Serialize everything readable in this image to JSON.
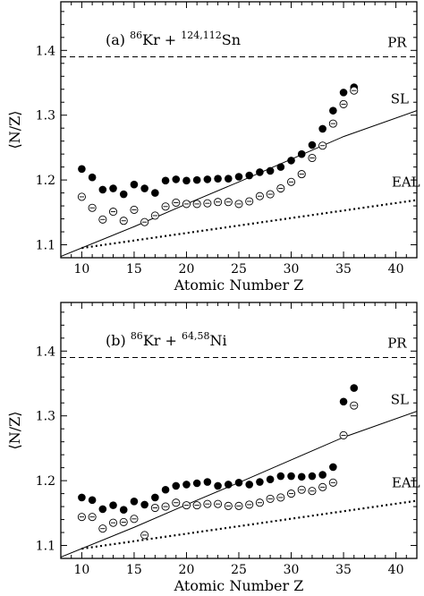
{
  "chart_data": [
    {
      "type": "scatter",
      "panel": "(a)",
      "title": {
        "proj_mass": "86",
        "proj": "Kr + ",
        "targ_mass": "124,112",
        "targ": "Sn"
      },
      "xlabel": "Atomic Number Z",
      "ylabel": "⟨N/Z⟩",
      "xlim": [
        8,
        42
      ],
      "ylim": [
        1.08,
        1.475
      ],
      "xticks": [
        "10",
        "15",
        "20",
        "25",
        "30",
        "35",
        "40"
      ],
      "yticks": [
        "1.1",
        "1.2",
        "1.3",
        "1.4"
      ],
      "grid": false,
      "reference_lines": [
        {
          "label": "PR",
          "style": "dashed",
          "y": 1.39
        },
        {
          "label": "SL",
          "style": "solid",
          "points": [
            [
              8,
              1.082
            ],
            [
              15,
              1.128
            ],
            [
              20,
              1.163
            ],
            [
              25,
              1.197
            ],
            [
              30,
              1.232
            ],
            [
              35,
              1.267
            ],
            [
              42,
              1.307
            ]
          ]
        },
        {
          "label": "EAL",
          "style": "dotted",
          "points": [
            [
              10,
              1.095
            ],
            [
              42,
              1.169
            ]
          ]
        }
      ],
      "series": [
        {
          "marker": "filled-circle",
          "x": [
            10,
            11,
            12,
            13,
            14,
            15,
            16,
            17,
            18,
            19,
            20,
            21,
            22,
            23,
            24,
            25,
            26,
            27,
            28,
            29,
            30,
            31,
            32,
            33,
            34,
            35,
            36
          ],
          "y": [
            1.217,
            1.204,
            1.185,
            1.187,
            1.178,
            1.193,
            1.187,
            1.18,
            1.199,
            1.201,
            1.199,
            1.2,
            1.201,
            1.202,
            1.202,
            1.205,
            1.207,
            1.212,
            1.214,
            1.22,
            1.23,
            1.24,
            1.254,
            1.279,
            1.307,
            1.335,
            1.343
          ]
        },
        {
          "marker": "open-circle-with-bar",
          "x": [
            10,
            11,
            12,
            13,
            14,
            15,
            16,
            17,
            18,
            19,
            20,
            21,
            22,
            23,
            24,
            25,
            26,
            27,
            28,
            29,
            30,
            31,
            32,
            33,
            34,
            35,
            36
          ],
          "y": [
            1.174,
            1.157,
            1.139,
            1.151,
            1.137,
            1.154,
            1.135,
            1.145,
            1.159,
            1.165,
            1.163,
            1.163,
            1.164,
            1.166,
            1.166,
            1.163,
            1.167,
            1.175,
            1.178,
            1.187,
            1.197,
            1.209,
            1.234,
            1.253,
            1.287,
            1.317,
            1.338
          ]
        }
      ]
    },
    {
      "type": "scatter",
      "panel": "(b)",
      "title": {
        "proj_mass": "86",
        "proj": "Kr + ",
        "targ_mass": "64,58",
        "targ": "Ni"
      },
      "xlabel": "Atomic Number Z",
      "ylabel": "⟨N/Z⟩",
      "xlim": [
        8,
        42
      ],
      "ylim": [
        1.08,
        1.475
      ],
      "xticks": [
        "10",
        "15",
        "20",
        "25",
        "30",
        "35",
        "40"
      ],
      "yticks": [
        "1.1",
        "1.2",
        "1.3",
        "1.4"
      ],
      "grid": false,
      "reference_lines": [
        {
          "label": "PR",
          "style": "dashed",
          "y": 1.39
        },
        {
          "label": "SL",
          "style": "solid",
          "points": [
            [
              8,
              1.082
            ],
            [
              15,
              1.128
            ],
            [
              20,
              1.163
            ],
            [
              25,
              1.197
            ],
            [
              30,
              1.232
            ],
            [
              35,
              1.267
            ],
            [
              42,
              1.307
            ]
          ]
        },
        {
          "label": "EAL",
          "style": "dotted",
          "points": [
            [
              10,
              1.095
            ],
            [
              42,
              1.169
            ]
          ]
        }
      ],
      "series": [
        {
          "marker": "filled-circle",
          "x": [
            10,
            11,
            12,
            13,
            14,
            15,
            16,
            17,
            18,
            19,
            20,
            21,
            22,
            23,
            24,
            25,
            26,
            27,
            28,
            29,
            30,
            31,
            32,
            33,
            34,
            35,
            36
          ],
          "y": [
            1.174,
            1.17,
            1.156,
            1.162,
            1.155,
            1.168,
            1.163,
            1.174,
            1.186,
            1.192,
            1.194,
            1.196,
            1.198,
            1.192,
            1.194,
            1.197,
            1.194,
            1.198,
            1.202,
            1.207,
            1.207,
            1.206,
            1.207,
            1.209,
            1.221,
            1.322,
            1.343
          ]
        },
        {
          "marker": "open-circle-with-bar",
          "x": [
            10,
            11,
            12,
            13,
            14,
            15,
            16,
            17,
            18,
            19,
            20,
            21,
            22,
            23,
            24,
            25,
            26,
            27,
            28,
            29,
            30,
            31,
            32,
            33,
            34,
            35,
            36
          ],
          "y": [
            1.144,
            1.144,
            1.126,
            1.135,
            1.136,
            1.141,
            1.116,
            1.158,
            1.16,
            1.166,
            1.162,
            1.162,
            1.164,
            1.164,
            1.161,
            1.161,
            1.163,
            1.166,
            1.172,
            1.174,
            1.18,
            1.186,
            1.184,
            1.19,
            1.197,
            1.27,
            1.316
          ]
        }
      ]
    }
  ]
}
